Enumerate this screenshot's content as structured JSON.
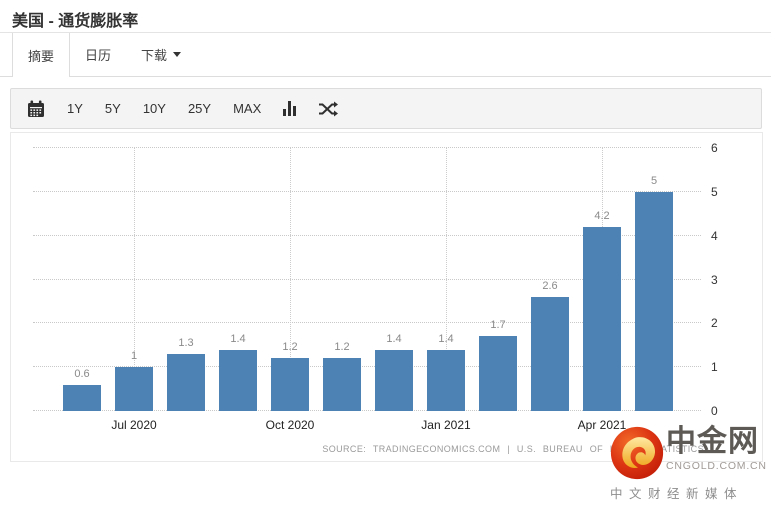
{
  "header": {
    "title": "美国 - 通货膨胀率"
  },
  "tabs": [
    {
      "label": "摘要",
      "active": true
    },
    {
      "label": "日历",
      "active": false
    },
    {
      "label": "下载",
      "active": false,
      "icon": "caret-down-icon"
    }
  ],
  "toolbar": {
    "icons": {
      "calendar": "calendar-icon",
      "chart_type": "bar-chart-icon",
      "compare": "shuffle-icon"
    },
    "ranges": [
      "1Y",
      "5Y",
      "10Y",
      "25Y",
      "MAX"
    ]
  },
  "chart_data": {
    "type": "bar",
    "values": [
      0.6,
      1,
      1.3,
      1.4,
      1.2,
      1.2,
      1.4,
      1.4,
      1.7,
      2.6,
      4.2,
      5
    ],
    "value_labels": [
      "0.6",
      "1",
      "1.3",
      "1.4",
      "1.2",
      "1.2",
      "1.4",
      "1.4",
      "1.7",
      "2.6",
      "4.2",
      "5"
    ],
    "x_ticks": [
      {
        "bar_index": 1,
        "label": "Jul 2020"
      },
      {
        "bar_index": 4,
        "label": "Oct 2020"
      },
      {
        "bar_index": 7,
        "label": "Jan 2021"
      },
      {
        "bar_index": 10,
        "label": "Apr 2021"
      }
    ],
    "ylim": [
      0,
      6
    ],
    "y_ticks": [
      0,
      1,
      2,
      3,
      4,
      5,
      6
    ],
    "y_axis_side": "right",
    "grid": "dotted",
    "bar_color": "#4d82b4",
    "title": "",
    "xlabel": "",
    "ylabel": ""
  },
  "source": {
    "text": "SOURCE: TRADINGECONOMICS.COM | U.S. BUREAU OF LABOR STATISTICS"
  },
  "logo": {
    "name": "中金网",
    "domain": "CNGOLD.COM.CN",
    "tagline": "中文财经新媒体",
    "colors": {
      "circle_red": "#d63019",
      "swirl_gold": "#f3b52a",
      "text_gray": "#5d5955"
    }
  }
}
